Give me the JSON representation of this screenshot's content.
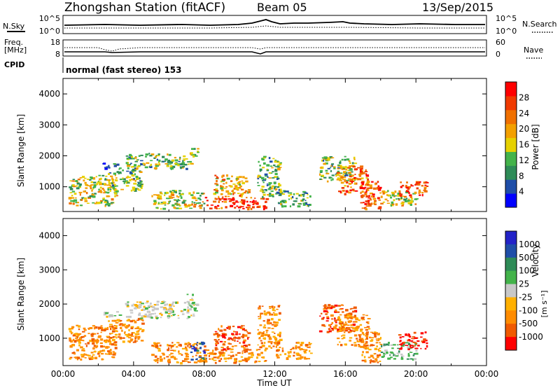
{
  "header": {
    "title": "Zhongshan Station (fitACF)",
    "beam": "Beam 05",
    "date": "13/Sep/2015"
  },
  "top_panels": {
    "nsky_label": "N.Sky",
    "nsky_ticks": [
      "10^5",
      "10^0"
    ],
    "nsearch_label": "N.Search",
    "nsearch_ticks": [
      "10^5",
      "10^0"
    ],
    "freq_label": "Freq.",
    "freq_unit": "[MHz]",
    "freq_ticks": [
      "18",
      "8"
    ],
    "nave_label": "Nave",
    "nave_ticks": [
      "60",
      "0"
    ],
    "cpid_label": "CPID",
    "cpid_value": "normal (fast stereo) 153"
  },
  "colors": {
    "power": [
      "#0000ff",
      "#1f4ea8",
      "#2e8b57",
      "#43b34a",
      "#e6d100",
      "#f3a000",
      "#f07000",
      "#f03a00",
      "#ff0000"
    ],
    "velocity": [
      "#2323c8",
      "#1f4ea8",
      "#2e8b57",
      "#43b34a",
      "#c8c8c8",
      "#ffb000",
      "#ff8c00",
      "#f05a00",
      "#ff0000"
    ]
  },
  "chart_data": [
    {
      "type": "heatmap",
      "panel": "power",
      "ylabel": "Slant Range [km]",
      "yticks": [
        "1000",
        "2000",
        "3000",
        "4000"
      ],
      "ylim": [
        200,
        4500
      ],
      "xlim": [
        0,
        24
      ],
      "colorbar_label": "Power [dB]",
      "colorbar_ticks": [
        "4",
        "8",
        "12",
        "16",
        "20",
        "24",
        "28"
      ],
      "colorbar_range": [
        0,
        32
      ],
      "blobs": [
        {
          "t0": 0.3,
          "t1": 3.0,
          "r0": 400,
          "r1": 1400,
          "level": 16
        },
        {
          "t0": 2.5,
          "t1": 4.5,
          "r0": 900,
          "r1": 1600,
          "level": 12
        },
        {
          "t0": 2.2,
          "t1": 3.2,
          "r0": 1600,
          "r1": 1800,
          "level": 8
        },
        {
          "t0": 3.5,
          "t1": 7.5,
          "r0": 1600,
          "r1": 2100,
          "level": 10
        },
        {
          "t0": 7.0,
          "t1": 7.6,
          "r0": 2000,
          "r1": 2300,
          "level": 14
        },
        {
          "t0": 5.0,
          "t1": 8.0,
          "r0": 300,
          "r1": 900,
          "level": 14
        },
        {
          "t0": 8.0,
          "t1": 11.5,
          "r0": 300,
          "r1": 700,
          "level": 26
        },
        {
          "t0": 8.5,
          "t1": 10.5,
          "r0": 700,
          "r1": 1400,
          "level": 18
        },
        {
          "t0": 11.0,
          "t1": 12.3,
          "r0": 700,
          "r1": 2000,
          "level": 12
        },
        {
          "t0": 12.0,
          "t1": 14.0,
          "r0": 400,
          "r1": 900,
          "level": 12
        },
        {
          "t0": 14.5,
          "t1": 16.5,
          "r0": 1200,
          "r1": 2000,
          "level": 12
        },
        {
          "t0": 15.5,
          "t1": 17.3,
          "r0": 800,
          "r1": 1700,
          "level": 22
        },
        {
          "t0": 16.8,
          "t1": 18.0,
          "r0": 300,
          "r1": 1200,
          "level": 28
        },
        {
          "t0": 18.0,
          "t1": 20.0,
          "r0": 400,
          "r1": 900,
          "level": 16
        },
        {
          "t0": 19.0,
          "t1": 20.6,
          "r0": 700,
          "r1": 1200,
          "level": 26
        }
      ]
    },
    {
      "type": "heatmap",
      "panel": "velocity",
      "ylabel": "Slant Range [km]",
      "yticks": [
        "1000",
        "2000",
        "3000",
        "4000"
      ],
      "ylim": [
        200,
        4500
      ],
      "xlim": [
        0,
        24
      ],
      "xlabel": "Time UT",
      "xticks": [
        "00:00",
        "04:00",
        "08:00",
        "12:00",
        "16:00",
        "20:00",
        "00:00"
      ],
      "colorbar_label": "Velocity",
      "colorbar_unit": "[m s⁻¹]",
      "colorbar_ticks": [
        "1000",
        "500",
        "100",
        "25",
        "-25",
        "-100",
        "-500",
        "-1000"
      ],
      "blobs": [
        {
          "t0": 0.3,
          "t1": 3.0,
          "r0": 400,
          "r1": 1400,
          "level": 6
        },
        {
          "t0": 2.5,
          "t1": 4.5,
          "r0": 900,
          "r1": 1600,
          "level": 6
        },
        {
          "t0": 2.2,
          "t1": 3.2,
          "r0": 1600,
          "r1": 1800,
          "level": 4
        },
        {
          "t0": 3.5,
          "t1": 7.5,
          "r0": 1600,
          "r1": 2100,
          "level": 4
        },
        {
          "t0": 7.0,
          "t1": 7.6,
          "r0": 2000,
          "r1": 2300,
          "level": 4
        },
        {
          "t0": 5.0,
          "t1": 8.0,
          "r0": 300,
          "r1": 900,
          "level": 6
        },
        {
          "t0": 7.2,
          "t1": 8.0,
          "r0": 400,
          "r1": 900,
          "level": 1
        },
        {
          "t0": 8.0,
          "t1": 11.5,
          "r0": 300,
          "r1": 700,
          "level": 6
        },
        {
          "t0": 8.5,
          "t1": 10.5,
          "r0": 700,
          "r1": 1400,
          "level": 7
        },
        {
          "t0": 11.0,
          "t1": 12.3,
          "r0": 700,
          "r1": 2000,
          "level": 6
        },
        {
          "t0": 12.0,
          "t1": 14.0,
          "r0": 400,
          "r1": 900,
          "level": 6
        },
        {
          "t0": 14.5,
          "t1": 16.5,
          "r0": 1200,
          "r1": 2000,
          "level": 7
        },
        {
          "t0": 15.5,
          "t1": 17.3,
          "r0": 800,
          "r1": 1700,
          "level": 6
        },
        {
          "t0": 16.8,
          "t1": 18.0,
          "r0": 300,
          "r1": 1200,
          "level": 6
        },
        {
          "t0": 18.0,
          "t1": 20.0,
          "r0": 400,
          "r1": 900,
          "level": 3
        },
        {
          "t0": 19.0,
          "t1": 20.6,
          "r0": 700,
          "r1": 1200,
          "level": 8
        }
      ]
    }
  ]
}
